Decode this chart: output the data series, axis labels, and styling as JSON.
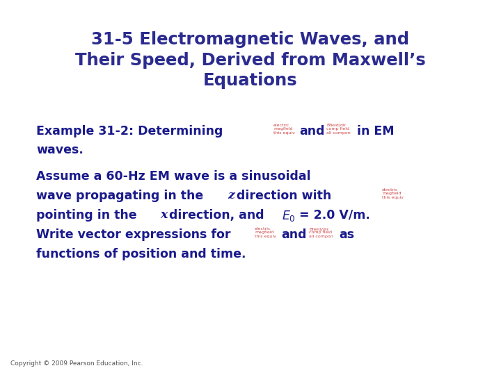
{
  "title_line1": "31-5 Electromagnetic Waves, and",
  "title_line2": "Their Speed, Derived from Maxwell’s",
  "title_line3": "Equations",
  "title_color": "#2b2b8f",
  "body_color": "#1a1a8c",
  "bg_color": "#ffffff",
  "copyright": "Copyright © 2009 Pearson Education, Inc.",
  "copyright_color": "#555555",
  "title_fontsize": 17.5,
  "body_fontsize": 12.5,
  "copyright_fontsize": 6.5
}
